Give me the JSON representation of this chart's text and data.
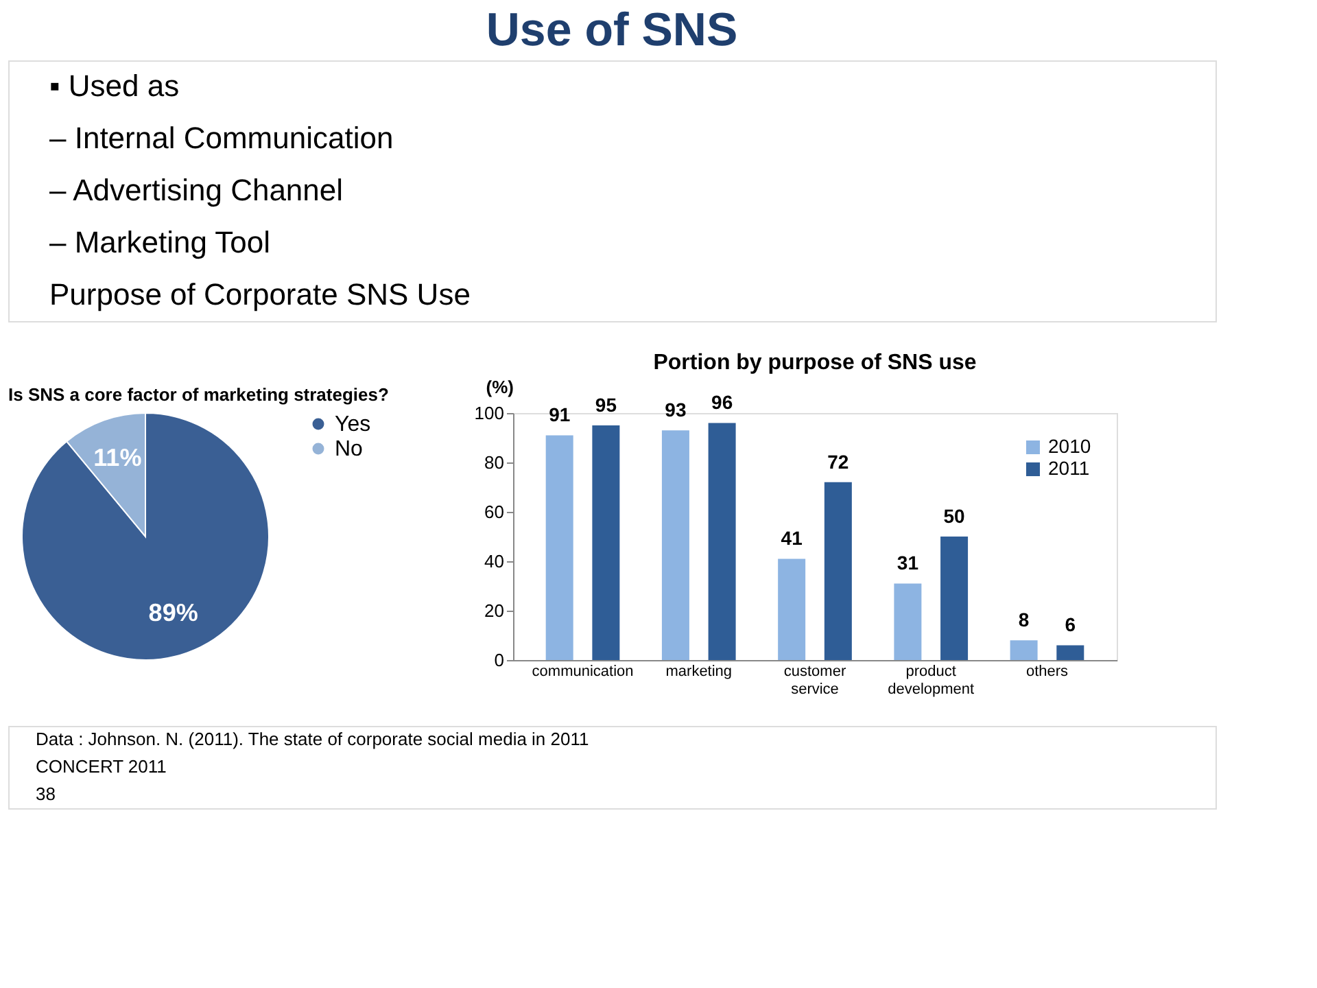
{
  "chart_data": [
    {
      "type": "other",
      "title": "Use of SNS",
      "annotations": [
        "▪ Used as",
        "– Internal Communication",
        "– Advertising Channel",
        "– Marketing Tool",
        "Purpose of Corporate SNS Use"
      ]
    },
    {
      "type": "pie",
      "title": "Is SNS a core factor of marketing strategies?",
      "categories": [
        "Yes",
        "No"
      ],
      "values": [
        89,
        11
      ],
      "colors": [
        "#3a5f94",
        "#95b3d7"
      ],
      "value_labels": [
        "89%",
        "11%"
      ],
      "legend": "right"
    },
    {
      "type": "bar",
      "title": "Portion by purpose of SNS use",
      "ylabel": "(%)",
      "categories": [
        "communication",
        "marketing",
        "customer service",
        "product development",
        "others"
      ],
      "series": [
        {
          "name": "2010",
          "color": "#8db4e2",
          "values": [
            91,
            93,
            41,
            31,
            8
          ]
        },
        {
          "name": "2011",
          "color": "#2f5d96",
          "values": [
            95,
            96,
            72,
            50,
            6
          ]
        }
      ],
      "ylim": [
        0,
        100
      ],
      "yticks": [
        0,
        20,
        40,
        60,
        80,
        100
      ],
      "data_labels": true,
      "legend": "top right",
      "grid": false
    },
    {
      "type": "other",
      "annotations": [
        "Data : Johnson. N. (2011). The state of corporate social media in 2011",
        "CONCERT 2011",
        "38"
      ]
    }
  ]
}
